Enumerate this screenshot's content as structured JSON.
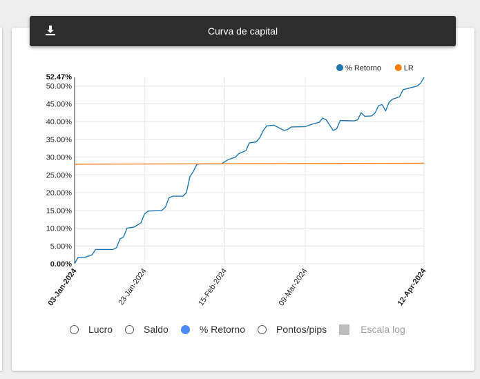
{
  "header": {
    "title": "Curva de capital",
    "download_icon": "download-icon"
  },
  "controls": {
    "options": [
      {
        "label": "Lucro",
        "type": "radio",
        "checked": false
      },
      {
        "label": "Saldo",
        "type": "radio",
        "checked": false
      },
      {
        "label": "% Retorno",
        "type": "radio",
        "checked": true
      },
      {
        "label": "Pontos/pips",
        "type": "radio",
        "checked": false
      },
      {
        "label": "Escala log",
        "type": "checkbox",
        "checked": false,
        "disabled": true
      }
    ]
  },
  "chart_data": {
    "type": "line",
    "title": "",
    "xlabel": "",
    "ylabel": "",
    "ylim": [
      0,
      52.47
    ],
    "xlim": [
      "2024-01-03",
      "2024-04-12"
    ],
    "yticks": [
      "0.00%",
      "5.00%",
      "10.00%",
      "15.00%",
      "20.00%",
      "25.00%",
      "30.00%",
      "35.00%",
      "40.00%",
      "45.00%",
      "50.00%"
    ],
    "ymax_label": "52.47%",
    "xticks": [
      {
        "date": "2024-01-03",
        "label": "03-Jan-2024",
        "bold": true
      },
      {
        "date": "2024-01-23",
        "label": "23-Jan-2024",
        "bold": false
      },
      {
        "date": "2024-02-15",
        "label": "15-Feb-2024",
        "bold": false
      },
      {
        "date": "2024-03-09",
        "label": "09-Mar-2024",
        "bold": false
      },
      {
        "date": "2024-04-12",
        "label": "12-Apr-2024",
        "bold": true
      }
    ],
    "grid": true,
    "legend_position": "top-right",
    "series": [
      {
        "name": "% Retorno",
        "color": "#1f77b4",
        "points": [
          [
            "2024-01-03",
            0.0
          ],
          [
            "2024-01-04",
            1.8
          ],
          [
            "2024-01-06",
            1.8
          ],
          [
            "2024-01-08",
            2.5
          ],
          [
            "2024-01-09",
            4.0
          ],
          [
            "2024-01-14",
            4.0
          ],
          [
            "2024-01-15",
            4.5
          ],
          [
            "2024-01-16",
            7.0
          ],
          [
            "2024-01-17",
            7.5
          ],
          [
            "2024-01-18",
            10.0
          ],
          [
            "2024-01-20",
            10.3
          ],
          [
            "2024-01-22",
            11.5
          ],
          [
            "2024-01-23",
            14.0
          ],
          [
            "2024-01-24",
            14.8
          ],
          [
            "2024-01-28",
            15.0
          ],
          [
            "2024-01-29",
            16.0
          ],
          [
            "2024-01-30",
            18.5
          ],
          [
            "2024-01-31",
            19.0
          ],
          [
            "2024-02-03",
            19.0
          ],
          [
            "2024-02-04",
            20.0
          ],
          [
            "2024-02-05",
            24.5
          ],
          [
            "2024-02-06",
            26.0
          ],
          [
            "2024-02-07",
            28.0
          ],
          [
            "2024-02-08",
            28.1
          ],
          [
            "2024-02-14",
            28.1
          ],
          [
            "2024-02-16",
            29.3
          ],
          [
            "2024-02-18",
            30.0
          ],
          [
            "2024-02-19",
            31.0
          ],
          [
            "2024-02-21",
            31.8
          ],
          [
            "2024-02-22",
            34.0
          ],
          [
            "2024-02-24",
            34.3
          ],
          [
            "2024-02-25",
            35.5
          ],
          [
            "2024-02-26",
            37.5
          ],
          [
            "2024-02-27",
            38.8
          ],
          [
            "2024-02-29",
            39.0
          ],
          [
            "2024-03-01",
            38.5
          ],
          [
            "2024-03-03",
            37.5
          ],
          [
            "2024-03-04",
            37.8
          ],
          [
            "2024-03-05",
            38.5
          ],
          [
            "2024-03-09",
            38.6
          ],
          [
            "2024-03-11",
            39.3
          ],
          [
            "2024-03-13",
            39.8
          ],
          [
            "2024-03-14",
            41.0
          ],
          [
            "2024-03-15",
            40.5
          ],
          [
            "2024-03-17",
            37.5
          ],
          [
            "2024-03-18",
            38.0
          ],
          [
            "2024-03-19",
            40.3
          ],
          [
            "2024-03-23",
            40.2
          ],
          [
            "2024-03-24",
            40.5
          ],
          [
            "2024-03-25",
            42.5
          ],
          [
            "2024-03-26",
            41.5
          ],
          [
            "2024-03-28",
            41.6
          ],
          [
            "2024-03-29",
            42.5
          ],
          [
            "2024-03-30",
            44.5
          ],
          [
            "2024-03-31",
            44.8
          ],
          [
            "2024-04-01",
            43.0
          ],
          [
            "2024-04-02",
            45.5
          ],
          [
            "2024-04-03",
            46.3
          ],
          [
            "2024-04-05",
            47.0
          ],
          [
            "2024-04-06",
            49.0
          ],
          [
            "2024-04-08",
            49.5
          ],
          [
            "2024-04-10",
            50.0
          ],
          [
            "2024-04-11",
            50.8
          ],
          [
            "2024-04-12",
            52.47
          ]
        ]
      },
      {
        "name": "LR",
        "color": "#ff7f0e",
        "points": [
          [
            "2024-01-03",
            28.0
          ],
          [
            "2024-04-12",
            28.3
          ]
        ]
      }
    ]
  }
}
